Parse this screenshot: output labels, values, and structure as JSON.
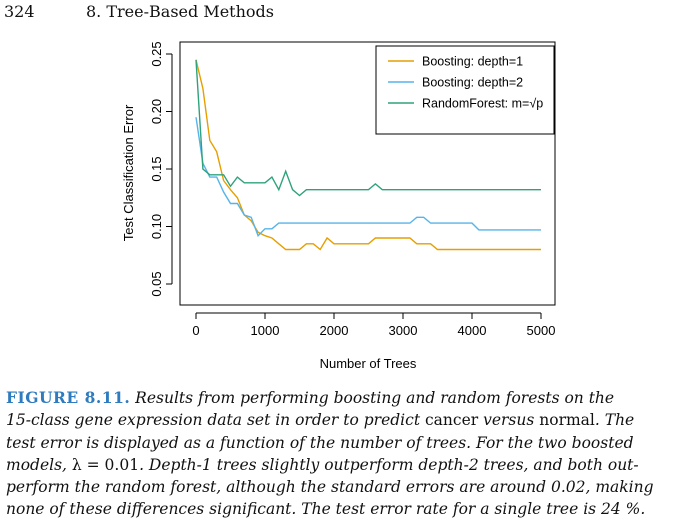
{
  "header": {
    "page_number": "324",
    "chapter": "8.  Tree-Based Methods"
  },
  "colors": {
    "boosting_depth1": "#E69F00",
    "boosting_depth2": "#56B4E9",
    "random_forest": "#2FA27C",
    "caption_label": "#2f7bbf"
  },
  "chart_data": {
    "type": "line",
    "xlabel": "Number of Trees",
    "ylabel": "Test Classification Error",
    "xlim": [
      0,
      5000
    ],
    "ylim": [
      0.05,
      0.25
    ],
    "xticks": [
      0,
      1000,
      2000,
      3000,
      4000,
      5000
    ],
    "xtick_labels": [
      "0",
      "1000",
      "2000",
      "3000",
      "4000",
      "5000"
    ],
    "yticks": [
      0.05,
      0.1,
      0.15,
      0.2,
      0.25
    ],
    "ytick_labels": [
      "0.05",
      "0.10",
      "0.15",
      "0.20",
      "0.25"
    ],
    "legend_position": "top-right",
    "series": [
      {
        "name": "Boosting: depth=1",
        "color": "#E69F00",
        "x": [
          0,
          100,
          200,
          300,
          400,
          500,
          600,
          700,
          800,
          900,
          1000,
          1100,
          1200,
          1300,
          1400,
          1500,
          1600,
          1700,
          1800,
          1900,
          2000,
          2500,
          2600,
          3100,
          3200,
          3400,
          3500,
          5000
        ],
        "y": [
          0.245,
          0.22,
          0.175,
          0.165,
          0.14,
          0.132,
          0.125,
          0.11,
          0.105,
          0.095,
          0.092,
          0.09,
          0.085,
          0.08,
          0.08,
          0.08,
          0.085,
          0.085,
          0.08,
          0.09,
          0.085,
          0.085,
          0.09,
          0.09,
          0.085,
          0.085,
          0.08,
          0.08
        ]
      },
      {
        "name": "Boosting: depth=2",
        "color": "#56B4E9",
        "x": [
          0,
          100,
          200,
          300,
          400,
          500,
          600,
          700,
          800,
          900,
          1000,
          1100,
          1200,
          1300,
          1400,
          2000,
          3000,
          3100,
          3200,
          3300,
          3400,
          3500,
          4000,
          4100,
          5000
        ],
        "y": [
          0.195,
          0.155,
          0.143,
          0.143,
          0.13,
          0.12,
          0.12,
          0.11,
          0.108,
          0.092,
          0.098,
          0.098,
          0.103,
          0.103,
          0.103,
          0.103,
          0.103,
          0.103,
          0.108,
          0.108,
          0.103,
          0.103,
          0.103,
          0.097,
          0.097
        ]
      },
      {
        "name": "RandomForest: m=√p",
        "color": "#2FA27C",
        "x": [
          0,
          100,
          200,
          300,
          400,
          500,
          600,
          700,
          800,
          900,
          1000,
          1100,
          1200,
          1300,
          1400,
          1500,
          1600,
          2000,
          2500,
          2600,
          2700,
          5000
        ],
        "y": [
          0.245,
          0.15,
          0.145,
          0.145,
          0.145,
          0.135,
          0.143,
          0.138,
          0.138,
          0.138,
          0.138,
          0.143,
          0.132,
          0.148,
          0.132,
          0.127,
          0.132,
          0.132,
          0.132,
          0.137,
          0.132,
          0.132
        ]
      }
    ]
  },
  "caption": {
    "label": "FIGURE 8.11.",
    "line1": " Results from performing boosting and random forests on the",
    "line2a": "15-class gene expression data set in order to predict ",
    "up1": "cancer",
    "line2b": " versus ",
    "up2": "normal",
    "line2c": ". The",
    "line3": "test error is displayed as a function of the number of trees. For the two boosted",
    "line4a": "models, ",
    "up3": "λ = 0.01",
    "line4b": ". Depth-1 trees slightly outperform depth-2 trees, and both out-",
    "line5": "perform the random forest, although the standard errors are around 0.02, making",
    "line6": "none of these differences significant. The test error rate for a single tree is 24 %."
  }
}
